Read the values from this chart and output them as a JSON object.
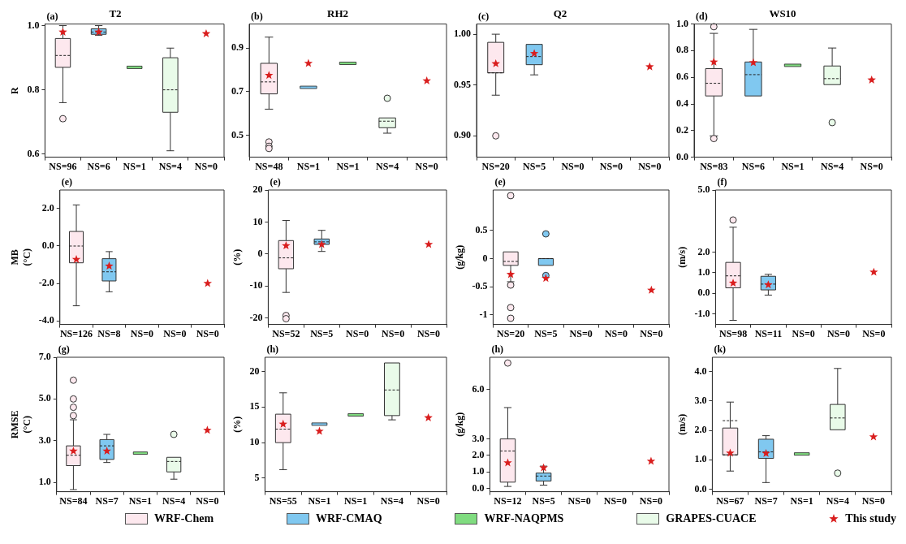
{
  "chart_data": [
    {
      "type": "box",
      "title": "T2",
      "ylabel": "R",
      "annotations": [
        "(a)"
      ],
      "categories": [
        "NS=96",
        "NS=6",
        "NS=1",
        "NS=4",
        "NS=0"
      ],
      "ylim": [
        0.59,
        1.005
      ],
      "yticks": [
        0.6,
        0.8,
        {
          "value": 1,
          "label": "1.0"
        }
      ],
      "grid": false,
      "marker": "star",
      "series": [
        {
          "type": "box",
          "color": "#fde8ee",
          "boxes": [
            {
              "low": 0.76,
              "q1": 0.87,
              "median": 0.907,
              "q3": 0.96,
              "high": 1.0,
              "outliers": [
                0.71
              ]
            },
            null,
            null,
            null,
            null
          ]
        },
        {
          "type": "box",
          "color": "#80c8f0",
          "boxes": [
            null,
            {
              "low": 0.97,
              "q1": 0.973,
              "median": 0.98,
              "q3": 0.99,
              "high": 1.0
            },
            null,
            null,
            null
          ]
        },
        {
          "type": "box",
          "color": "#80dc80",
          "boxes": [
            null,
            null,
            {
              "low": 0.87,
              "q1": 0.87,
              "median": 0.87,
              "q3": 0.87,
              "high": 0.87
            },
            null,
            null
          ]
        },
        {
          "type": "box",
          "color": "#e9fbe9",
          "boxes": [
            null,
            null,
            null,
            {
              "low": 0.61,
              "q1": 0.73,
              "median": 0.8,
              "q3": 0.9,
              "high": 0.93
            },
            null
          ]
        },
        {
          "type": "scatter",
          "color": "#d91e1e",
          "values": [
            0.98,
            0.98,
            null,
            null,
            0.975
          ]
        }
      ]
    },
    {
      "type": "box",
      "title": "RH2",
      "annotations": [
        "(b)"
      ],
      "categories": [
        "NS=48",
        "NS=1",
        "NS=1",
        "NS=4",
        "NS=0"
      ],
      "ylim": [
        0.4,
        1.01
      ],
      "yticks": [
        0.5,
        0.7,
        0.9
      ],
      "grid": false,
      "marker": "star",
      "series": [
        {
          "type": "box",
          "color": "#fde8ee",
          "boxes": [
            {
              "low": 0.62,
              "q1": 0.69,
              "median": 0.745,
              "q3": 0.83,
              "high": 0.95,
              "outliers": [
                0.47,
                0.45,
                0.44
              ]
            },
            null,
            null,
            null,
            null
          ]
        },
        {
          "type": "box",
          "color": "#80c8f0",
          "boxes": [
            null,
            {
              "low": 0.72,
              "q1": 0.72,
              "median": 0.72,
              "q3": 0.72,
              "high": 0.72
            },
            null,
            null,
            null
          ]
        },
        {
          "type": "box",
          "color": "#80dc80",
          "boxes": [
            null,
            null,
            {
              "low": 0.83,
              "q1": 0.83,
              "median": 0.83,
              "q3": 0.83,
              "high": 0.83
            },
            null,
            null
          ]
        },
        {
          "type": "box",
          "color": "#e9fbe9",
          "boxes": [
            null,
            null,
            null,
            {
              "low": 0.51,
              "q1": 0.535,
              "median": 0.565,
              "q3": 0.58,
              "high": 0.58,
              "outliers": [
                0.67
              ]
            },
            null
          ]
        },
        {
          "type": "scatter",
          "color": "#d91e1e",
          "values": [
            0.775,
            0.83,
            null,
            null,
            0.75
          ]
        }
      ]
    },
    {
      "type": "box",
      "title": "Q2",
      "annotations": [
        "(c)"
      ],
      "categories": [
        "NS=20",
        "NS=5",
        "NS=0",
        "NS=0",
        "NS=0"
      ],
      "ylim": [
        0.879,
        1.01
      ],
      "yticks": [
        {
          "value": 0.9,
          "label": "0.90"
        },
        0.95,
        {
          "value": 1,
          "label": "1.00"
        }
      ],
      "grid": false,
      "marker": "star",
      "series": [
        {
          "type": "box",
          "color": "#fde8ee",
          "boxes": [
            {
              "low": 0.94,
              "q1": 0.962,
              "median": 0.962,
              "q3": 0.992,
              "high": 1.0,
              "outliers": [
                0.9
              ]
            },
            null,
            null,
            null,
            null
          ]
        },
        {
          "type": "box",
          "color": "#80c8f0",
          "boxes": [
            null,
            {
              "low": 0.96,
              "q1": 0.97,
              "median": 0.978,
              "q3": 0.99,
              "high": 0.99
            },
            null,
            null,
            null
          ]
        },
        {
          "type": "scatter",
          "color": "#d91e1e",
          "values": [
            0.971,
            0.981,
            null,
            null,
            0.968
          ]
        }
      ]
    },
    {
      "type": "box",
      "title": "WS10",
      "annotations": [
        "(d)"
      ],
      "categories": [
        "NS=83",
        "NS=6",
        "NS=1",
        "NS=4",
        "NS=0"
      ],
      "ylim": [
        0,
        1
      ],
      "yticks": [
        {
          "value": 0,
          "label": "0.0"
        },
        0.2,
        0.4,
        0.6,
        0.8,
        {
          "value": 1,
          "label": "1.0"
        }
      ],
      "grid": false,
      "marker": "star",
      "series": [
        {
          "type": "box",
          "color": "#fde8ee",
          "boxes": [
            {
              "low": 0.16,
              "q1": 0.46,
              "median": 0.555,
              "q3": 0.665,
              "high": 0.93,
              "outliers": [
                0.98,
                0.14
              ]
            },
            null,
            null,
            null,
            null
          ]
        },
        {
          "type": "box",
          "color": "#80c8f0",
          "boxes": [
            null,
            {
              "low": 0.46,
              "q1": 0.46,
              "median": 0.62,
              "q3": 0.715,
              "high": 0.96
            },
            null,
            null,
            null
          ]
        },
        {
          "type": "box",
          "color": "#80dc80",
          "boxes": [
            null,
            null,
            {
              "low": 0.69,
              "q1": 0.69,
              "median": 0.69,
              "q3": 0.69,
              "high": 0.69
            },
            null,
            null
          ]
        },
        {
          "type": "box",
          "color": "#e9fbe9",
          "boxes": [
            null,
            null,
            null,
            {
              "low": 0.545,
              "q1": 0.545,
              "median": 0.59,
              "q3": 0.685,
              "high": 0.82,
              "outliers": [
                0.26
              ]
            },
            null
          ]
        },
        {
          "type": "scatter",
          "color": "#d91e1e",
          "values": [
            0.715,
            0.71,
            null,
            null,
            0.58
          ]
        }
      ]
    },
    {
      "type": "box",
      "ylabel": "MB (°C)",
      "annotations": [
        "(e)"
      ],
      "categories": [
        "NS=126",
        "NS=8",
        "NS=0",
        "NS=0",
        "NS=0"
      ],
      "ylim": [
        -4.2,
        3.0
      ],
      "yticks": [
        {
          "value": -4,
          "label": "-4.0"
        },
        {
          "value": -2,
          "label": "-2.0"
        },
        {
          "value": 0,
          "label": "0.0"
        },
        {
          "value": 2,
          "label": "2.0"
        }
      ],
      "grid": false,
      "marker": "star",
      "series": [
        {
          "type": "box",
          "color": "#fde8ee",
          "boxes": [
            {
              "low": -3.2,
              "q1": -0.9,
              "median": 0.0,
              "q3": 0.78,
              "high": 2.2
            },
            null,
            null,
            null,
            null
          ]
        },
        {
          "type": "box",
          "color": "#80c8f0",
          "boxes": [
            null,
            {
              "low": -2.45,
              "q1": -1.87,
              "median": -1.38,
              "q3": -0.68,
              "high": -0.3
            },
            null,
            null,
            null
          ]
        },
        {
          "type": "scatter",
          "color": "#d91e1e",
          "values": [
            -0.72,
            -1.07,
            null,
            null,
            -2.0
          ]
        }
      ]
    },
    {
      "type": "box",
      "ylabel": "(%)",
      "annotations": [
        "(e)"
      ],
      "categories": [
        "NS=52",
        "NS=5",
        "NS=0",
        "NS=0",
        "NS=0"
      ],
      "ylim": [
        -22,
        20
      ],
      "yticks": [
        -20,
        -10,
        0,
        10,
        20
      ],
      "grid": false,
      "marker": "star",
      "series": [
        {
          "type": "box",
          "color": "#fde8ee",
          "boxes": [
            {
              "low": -12,
              "q1": -4.6,
              "median": -1.2,
              "q3": 4.2,
              "high": 10.5,
              "outliers": [
                -19.2,
                -20.2
              ]
            },
            null,
            null,
            null,
            null
          ]
        },
        {
          "type": "box",
          "color": "#80c8f0",
          "boxes": [
            null,
            {
              "low": 0.8,
              "q1": 3.0,
              "median": 3.8,
              "q3": 4.7,
              "high": 7.4
            },
            null,
            null,
            null
          ]
        },
        {
          "type": "scatter",
          "color": "#d91e1e",
          "values": [
            2.6,
            3.0,
            null,
            null,
            3.0
          ]
        }
      ]
    },
    {
      "type": "box",
      "ylabel": "(g/kg)",
      "annotations": [
        "(e)"
      ],
      "categories": [
        "NS=20",
        "NS=5",
        "NS=0",
        "NS=0",
        "NS=0"
      ],
      "ylim": [
        -1.17,
        1.22
      ],
      "yticks": [
        -1,
        -0.5,
        0,
        0.5
      ],
      "grid": false,
      "marker": "star",
      "series": [
        {
          "type": "box",
          "color": "#fde8ee",
          "boxes": [
            {
              "low": -0.41,
              "q1": -0.12,
              "median": -0.05,
              "q3": 0.12,
              "high": 0.12,
              "outliers": [
                1.12,
                -0.47,
                -0.87,
                -1.06
              ]
            },
            null,
            null,
            null,
            null
          ]
        },
        {
          "type": "box",
          "color": "#80c8f0",
          "boxes": [
            null,
            {
              "low": -0.12,
              "q1": -0.12,
              "median": 0,
              "q3": 0,
              "high": 0,
              "outliers": [
                0.44,
                -0.3
              ]
            },
            null,
            null,
            null
          ]
        },
        {
          "type": "scatter",
          "color": "#d91e1e",
          "values": [
            -0.28,
            -0.35,
            null,
            null,
            -0.56
          ]
        }
      ]
    },
    {
      "type": "box",
      "ylabel": "(m/s)",
      "annotations": [
        "(f)"
      ],
      "categories": [
        "NS=98",
        "NS=11",
        "NS=0",
        "NS=0",
        "NS=0"
      ],
      "ylim": [
        -1.5,
        5.0
      ],
      "yticks": [
        {
          "value": -1,
          "label": "-1.0"
        },
        {
          "value": 0,
          "label": "0.0"
        },
        {
          "value": 1,
          "label": "1.0"
        },
        {
          "value": 2,
          "label": "2.0"
        },
        {
          "value": 5,
          "label": "5.0"
        }
      ],
      "grid": false,
      "marker": "star",
      "series": [
        {
          "type": "box",
          "color": "#fde8ee",
          "boxes": [
            {
              "low": -1.3,
              "q1": 0.27,
              "median": 0.85,
              "q3": 1.5,
              "high": 3.2,
              "outliers": [
                3.55
              ]
            },
            null,
            null,
            null,
            null
          ]
        },
        {
          "type": "box",
          "color": "#80c8f0",
          "boxes": [
            null,
            {
              "low": -0.08,
              "q1": 0.17,
              "median": 0.45,
              "q3": 0.83,
              "high": 0.92
            },
            null,
            null,
            null
          ]
        },
        {
          "type": "scatter",
          "color": "#d91e1e",
          "values": [
            0.5,
            0.42,
            null,
            null,
            1.03
          ]
        }
      ]
    },
    {
      "type": "box",
      "ylabel": "RMSE (°C)",
      "annotations": [
        "(g)"
      ],
      "categories": [
        "NS=84",
        "NS=7",
        "NS=1",
        "NS=4",
        "NS=0"
      ],
      "ylim": [
        0.55,
        7.0
      ],
      "yticks": [
        {
          "value": 1,
          "label": "1.0"
        },
        {
          "value": 3,
          "label": "3.0"
        },
        {
          "value": 5,
          "label": "5.0"
        },
        {
          "value": 7,
          "label": "7.0"
        }
      ],
      "grid": false,
      "marker": "star",
      "series": [
        {
          "type": "box",
          "color": "#fde8ee",
          "boxes": [
            {
              "low": 0.65,
              "q1": 1.8,
              "median": 2.3,
              "q3": 2.75,
              "high": 4.0,
              "outliers": [
                5.9,
                5.0,
                4.6,
                4.2
              ]
            },
            null,
            null,
            null,
            null
          ]
        },
        {
          "type": "box",
          "color": "#80c8f0",
          "boxes": [
            null,
            {
              "low": 1.95,
              "q1": 2.1,
              "median": 2.75,
              "q3": 3.05,
              "high": 3.3
            },
            null,
            null,
            null
          ]
        },
        {
          "type": "box",
          "color": "#80dc80",
          "boxes": [
            null,
            null,
            {
              "low": 2.4,
              "q1": 2.4,
              "median": 2.4,
              "q3": 2.4,
              "high": 2.4
            },
            null,
            null
          ]
        },
        {
          "type": "box",
          "color": "#e9fbe9",
          "boxes": [
            null,
            null,
            null,
            {
              "low": 1.15,
              "q1": 1.5,
              "median": 2.0,
              "q3": 2.2,
              "high": 2.2,
              "outliers": [
                3.3
              ]
            },
            null
          ]
        },
        {
          "type": "scatter",
          "color": "#d91e1e",
          "values": [
            2.5,
            2.5,
            null,
            null,
            3.5
          ]
        }
      ]
    },
    {
      "type": "box",
      "ylabel": "(%)",
      "annotations": [
        "(h)"
      ],
      "categories": [
        "NS=55",
        "NS=1",
        "NS=1",
        "NS=4",
        "NS=0"
      ],
      "ylim": [
        3.1,
        22
      ],
      "yticks": [
        5,
        10,
        15,
        20
      ],
      "grid": false,
      "marker": "star",
      "series": [
        {
          "type": "box",
          "color": "#fde8ee",
          "boxes": [
            {
              "low": 6.2,
              "q1": 10,
              "median": 11.9,
              "q3": 14,
              "high": 17
            },
            null,
            null,
            null,
            null
          ]
        },
        {
          "type": "box",
          "color": "#80c8f0",
          "boxes": [
            null,
            {
              "low": 12.6,
              "q1": 12.6,
              "median": 12.6,
              "q3": 12.6,
              "high": 12.6
            },
            null,
            null,
            null
          ]
        },
        {
          "type": "box",
          "color": "#80dc80",
          "boxes": [
            null,
            null,
            {
              "low": 13.9,
              "q1": 13.9,
              "median": 13.9,
              "q3": 13.9,
              "high": 13.9
            },
            null,
            null
          ]
        },
        {
          "type": "box",
          "color": "#e9fbe9",
          "boxes": [
            null,
            null,
            null,
            {
              "low": 13.2,
              "q1": 13.8,
              "median": 17.4,
              "q3": 21.2,
              "high": 21.2
            },
            null
          ]
        },
        {
          "type": "scatter",
          "color": "#d91e1e",
          "values": [
            12.6,
            11.6,
            null,
            null,
            13.5
          ]
        }
      ]
    },
    {
      "type": "box",
      "ylabel": "(g/kg)",
      "annotations": [
        "(h)"
      ],
      "categories": [
        "NS=12",
        "NS=5",
        "NS=0",
        "NS=0",
        "NS=0"
      ],
      "ylim": [
        -0.2,
        7.95
      ],
      "yticks": [
        {
          "value": 0,
          "label": "0.0"
        },
        {
          "value": 1,
          "label": "1.0"
        },
        {
          "value": 2,
          "label": "2.0"
        },
        {
          "value": 3,
          "label": "3.0"
        },
        {
          "value": 6,
          "label": "6.0"
        }
      ],
      "grid": false,
      "marker": "star",
      "series": [
        {
          "type": "box",
          "color": "#fde8ee",
          "boxes": [
            {
              "low": 0.12,
              "q1": 0.38,
              "median": 2.27,
              "q3": 3.0,
              "high": 4.9,
              "outliers": [
                7.6
              ]
            },
            null,
            null,
            null,
            null
          ]
        },
        {
          "type": "box",
          "color": "#80c8f0",
          "boxes": [
            null,
            {
              "low": 0.2,
              "q1": 0.45,
              "median": 0.75,
              "q3": 0.93,
              "high": 1.35
            },
            null,
            null,
            null
          ]
        },
        {
          "type": "scatter",
          "color": "#d91e1e",
          "values": [
            1.55,
            1.25,
            null,
            null,
            1.65
          ]
        }
      ]
    },
    {
      "type": "box",
      "ylabel": "(m/s)",
      "annotations": [
        "(k)"
      ],
      "categories": [
        "NS=67",
        "NS=7",
        "NS=1",
        "NS=4",
        "NS=0"
      ],
      "ylim": [
        -0.08,
        4.48
      ],
      "yticks": [
        {
          "value": 0,
          "label": "0.0"
        },
        {
          "value": 1,
          "label": "1.0"
        },
        {
          "value": 2,
          "label": "2.0"
        },
        {
          "value": 3,
          "label": "3.0"
        },
        {
          "value": 4,
          "label": "4.0"
        }
      ],
      "grid": false,
      "marker": "star",
      "legend": "bottom",
      "series": [
        {
          "type": "box",
          "name": "WRF-Chem",
          "color": "#fde8ee",
          "boxes": [
            {
              "low": 0.62,
              "q1": 1.17,
              "median": 1.17,
              "mean": 2.33,
              "q3": 2.08,
              "high": 2.96
            },
            null,
            null,
            null,
            null
          ]
        },
        {
          "type": "box",
          "name": "WRF-CMAQ",
          "color": "#80c8f0",
          "boxes": [
            null,
            {
              "low": 0.23,
              "q1": 1.05,
              "median": 1.27,
              "q3": 1.7,
              "high": 1.82
            },
            null,
            null,
            null
          ]
        },
        {
          "type": "box",
          "name": "WRF-NAQPMS",
          "color": "#80dc80",
          "boxes": [
            null,
            null,
            {
              "low": 1.2,
              "q1": 1.2,
              "median": 1.2,
              "q3": 1.2,
              "high": 1.2
            },
            null,
            null
          ]
        },
        {
          "type": "box",
          "name": "GRAPES-CUACE",
          "color": "#e9fbe9",
          "boxes": [
            null,
            null,
            null,
            {
              "low": 2.02,
              "q1": 2.02,
              "median": 2.42,
              "q3": 2.88,
              "high": 4.1,
              "outliers": [
                0.55
              ]
            },
            null
          ]
        },
        {
          "type": "scatter",
          "name": "This study",
          "color": "#d91e1e",
          "values": [
            1.23,
            1.22,
            null,
            null,
            1.78
          ]
        }
      ]
    }
  ]
}
